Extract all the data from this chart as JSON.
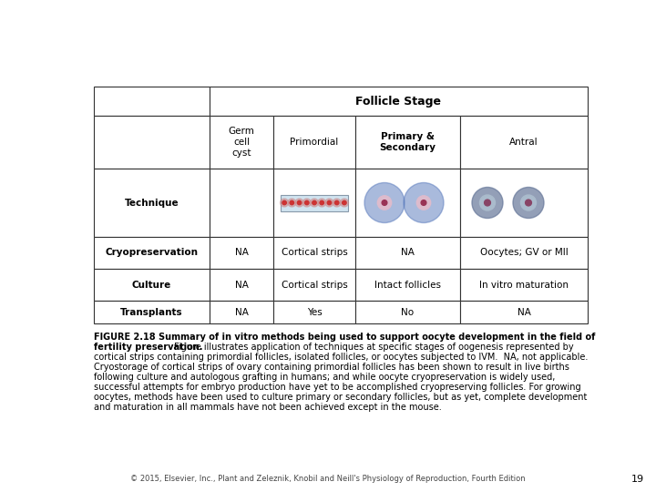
{
  "title": "Follicle Stage",
  "col_headers": [
    "Germ\ncell\ncyst",
    "Primordial",
    "Primary &\nSecondary",
    "Antral"
  ],
  "row_headers": [
    "Technique",
    "Cryopreservation",
    "Culture",
    "Transplants"
  ],
  "table_data": [
    [
      "",
      "",
      "",
      ""
    ],
    [
      "NA",
      "Cortical strips",
      "NA",
      "Oocytes; GV or MII"
    ],
    [
      "NA",
      "Cortical strips",
      "Intact follicles",
      "In vitro maturation"
    ],
    [
      "NA",
      "Yes",
      "No",
      "NA"
    ]
  ],
  "caption_bold1": "FIGURE 2.18 Summary of in vitro methods being used to support oocyte development in the field of",
  "caption_bold2": "fertility preservation.",
  "caption_normal": "Figure illustrates application of techniques at specific stages of oogenesis represented by cortical strips containing primordial follicles, isolated follicles, or oocytes subjected to IVM.  NA, not applicable. Cryostorage of cortical strips of ovary containing primordial follicles has been shown to result in live births following culture and autologous grafting in humans; and while oocyte cryopreservation is widely used, successful attempts for embryo production have yet to be accomplished cryopreserving follicles. For growing oocytes, methods have been used to culture primary or secondary follicles, but as yet, complete development and maturation in all mammals have not been achieved except in the mouse.",
  "footer": "© 2015, Elsevier, Inc., Plant and Zeleznik, Knobil and Neill's Physiology of Reproduction, Fourth Edition",
  "page_number": "19",
  "bg_color": "#ffffff"
}
